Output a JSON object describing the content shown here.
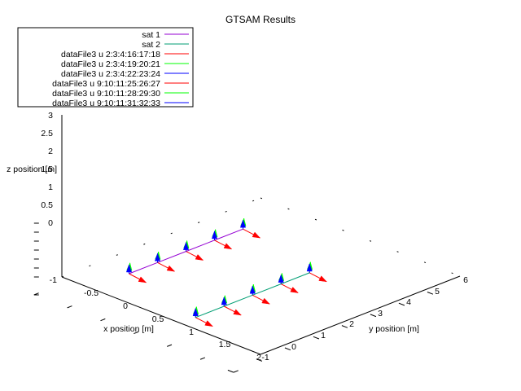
{
  "chart_data": {
    "type": "scatter",
    "dimensions": "3d",
    "title": "GTSAM Results",
    "xlabel": "x position [m]",
    "ylabel": "y position [m]",
    "zlabel": "z position [m]",
    "xlim": [
      -1,
      2
    ],
    "ylim": [
      -1,
      6
    ],
    "zlim": [
      -1,
      3
    ],
    "x_ticks": [
      "-1",
      "-0.5",
      "0",
      "0.5",
      "1",
      "1.5",
      "2"
    ],
    "y_ticks": [
      "-1",
      "0",
      "1",
      "2",
      "3",
      "4",
      "5",
      "6"
    ],
    "z_ticks": [
      "-1",
      "0",
      "0.5",
      "1",
      "1.5",
      "2",
      "2.5",
      "3"
    ],
    "legend_position": "top-left",
    "legend": [
      {
        "label": "sat 1",
        "color": "#9400d3"
      },
      {
        "label": "sat 2",
        "color": "#009e73"
      },
      {
        "label": "dataFile3 u 2:3:4:16:17:18",
        "color": "#ff0000"
      },
      {
        "label": "dataFile3 u 2:3:4:19:20:21",
        "color": "#00ff00"
      },
      {
        "label": "dataFile3 u 2:3:4:22:23:24",
        "color": "#0000ff"
      },
      {
        "label": "dataFile3 u 9:10:11:25:26:27",
        "color": "#ff0000"
      },
      {
        "label": "dataFile3 u 9:10:11:28:29:30",
        "color": "#00ff00"
      },
      {
        "label": "dataFile3 u 9:10:11:31:32:33",
        "color": "#0000ff"
      }
    ],
    "series": [
      {
        "name": "sat 1",
        "color": "#9400d3",
        "points": [
          {
            "x": 0,
            "y": 0,
            "z": 1
          },
          {
            "x": 0,
            "y": 1,
            "z": 1
          },
          {
            "x": 0,
            "y": 2,
            "z": 1
          },
          {
            "x": 0,
            "y": 3,
            "z": 1
          },
          {
            "x": 0,
            "y": 4,
            "z": 1
          }
        ]
      },
      {
        "name": "sat 2",
        "color": "#009e73",
        "points": [
          {
            "x": 1,
            "y": 0,
            "z": 0
          },
          {
            "x": 1,
            "y": 1,
            "z": 0
          },
          {
            "x": 1,
            "y": 2,
            "z": 0
          },
          {
            "x": 1,
            "y": 3,
            "z": 0
          },
          {
            "x": 1,
            "y": 4,
            "z": 0
          }
        ]
      }
    ],
    "orientation_arrows": {
      "length": 0.5,
      "axes": [
        {
          "color": "#ff0000",
          "direction": [
            0.6,
            -0.2,
            0
          ]
        },
        {
          "color": "#00ff00",
          "direction": [
            -0.4,
            1,
            0
          ]
        },
        {
          "color": "#0000ff",
          "direction": [
            0,
            0,
            1
          ]
        }
      ]
    }
  }
}
